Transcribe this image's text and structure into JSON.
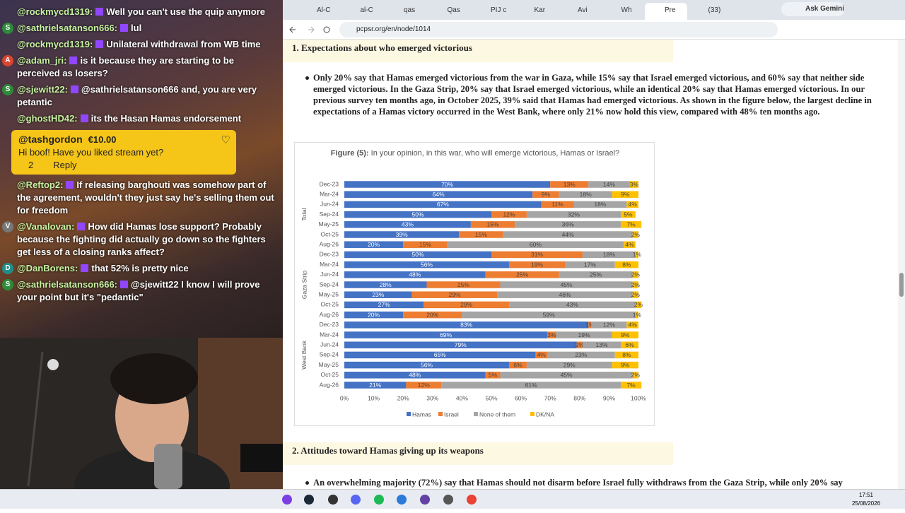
{
  "chat": {
    "messages": [
      {
        "user": "@rockmycd1319:",
        "text": "Well you can't use the quip anymore"
      },
      {
        "avatar": "S",
        "user": "@sathrielsatanson666:",
        "text": "lul"
      },
      {
        "user": "@rockmycd1319:",
        "text": "Unilateral withdrawal from WB time"
      },
      {
        "avatar": "A",
        "user": "@adam_jri:",
        "text": "is it because they are starting to be perceived as losers?"
      },
      {
        "avatar": "S",
        "user": "@sjewitt22:",
        "text": "@sathrielsatanson666 and, you are very petantic"
      },
      {
        "user": "@ghostHD42:",
        "text": "its the Hasan Hamas endorsement"
      }
    ],
    "donation": {
      "user": "@tashgordon",
      "amount": "€10.00",
      "text": "Hi boof! Have you liked stream yet?",
      "likes": "2",
      "reply": "Reply"
    },
    "messages_after": [
      {
        "user": "@Reftop2:",
        "text": "If releasing barghouti was somehow part of the agreement, wouldn't they just say he's selling them out for freedom"
      },
      {
        "avatar": "V",
        "user": "@Vanalovan:",
        "text": "How did Hamas lose support? Probably because the fighting did actually go down so the fighters get less of a closing ranks affect?"
      },
      {
        "avatar": "D",
        "user": "@DanBorens:",
        "text": "that 52% is pretty nice"
      },
      {
        "avatar": "S",
        "user": "@sathrielsatanson666:",
        "text": "@sjewitt22 I know I will prove your point but it's \"pedantic\""
      }
    ]
  },
  "browser": {
    "tabs": [
      "Al-C",
      "al-C",
      "qas",
      "Qas",
      "PIJ c",
      "Kar",
      "Avi",
      "Wh",
      "Pre",
      "(33)"
    ],
    "gemini": "Ask Gemini",
    "url": "pcpsr.org/en/node/1014"
  },
  "article": {
    "heading_1": "1. Expectations about who emerged victorious",
    "bullet_1": "Only 20% say that Hamas emerged victorious from the war in Gaza, while 15% say that Israel emerged victorious, and 60% say that neither side emerged victorious. In the Gaza Strip, 20% say that Israel emerged victorious, while an identical 20% say that Hamas emerged victorious. In our previous survey ten months ago, in October 2025, 39% said that Hamas had emerged victorious. As shown in the figure below, the largest decline in expectations of a Hamas victory occurred in the West Bank, where only 21% now hold this view, compared with 48% ten months ago.",
    "heading_2": "2. Attitudes toward Hamas giving up its weapons",
    "bullet_2": "An overwhelming majority (72%) say that Hamas should not disarm before Israel fully withdraws from the Gaza Strip, while only 20% say"
  },
  "chart_data": {
    "type": "stacked-barh",
    "title": "Figure (5):",
    "subtitle": "In your opinion, in this war, who will emerge victorious, Hamas or Israel?",
    "group_labels": [
      "Total",
      "Gaza Strip",
      "West Bank"
    ],
    "categories": [
      "Dec-23",
      "Mar-24",
      "Jun-24",
      "Sep-24",
      "May-25",
      "Oct-25",
      "Aug-26",
      "Dec-23",
      "Mar-24",
      "Jun-24",
      "Sep-24",
      "May-25",
      "Oct-25",
      "Aug-26",
      "Dec-23",
      "Mar-24",
      "Jun-24",
      "Sep-24",
      "May-25",
      "Oct-25",
      "Aug-26"
    ],
    "series": [
      {
        "name": "Hamas",
        "color": "#4472c4",
        "values": [
          70,
          64,
          67,
          50,
          43,
          39,
          20,
          50,
          56,
          48,
          28,
          23,
          27,
          20,
          83,
          69,
          79,
          65,
          56,
          48,
          21
        ],
        "value_labels": [
          "70%",
          "64%",
          "67%",
          "50%",
          "43%",
          "39%",
          "20%",
          "50%",
          "56%",
          "48%",
          "28%",
          "23%",
          "27%",
          "20%",
          "83%",
          "69%",
          "79%",
          "65%",
          "56%",
          "48%",
          "21%"
        ]
      },
      {
        "name": "Israel",
        "color": "#ed7d31",
        "values": [
          13,
          9,
          11,
          12,
          15,
          15,
          15,
          31,
          19,
          25,
          25,
          29,
          29,
          20,
          1,
          3,
          2,
          4,
          6,
          5,
          12
        ],
        "value_labels": [
          "13%",
          "9%",
          "11%",
          "12%",
          "15%",
          "15%",
          "15%",
          "31%",
          "19%",
          "25%",
          "25%",
          "29%",
          "29%",
          "20%",
          "1%",
          "3%",
          "2%",
          "4%",
          "6%",
          "5%",
          "12%"
        ]
      },
      {
        "name": "None of them",
        "color": "#a5a5a5",
        "values": [
          14,
          18,
          18,
          32,
          36,
          44,
          60,
          18,
          17,
          25,
          45,
          46,
          43,
          59,
          12,
          19,
          13,
          23,
          29,
          45,
          61
        ],
        "value_labels": [
          "14%",
          "18%",
          "18%",
          "32%",
          "36%",
          "44%",
          "60%",
          "18%",
          "17%",
          "25%",
          "45%",
          "46%",
          "43%",
          "59%",
          "12%",
          "19%",
          "13%",
          "23%",
          "29%",
          "45%",
          "61%"
        ]
      },
      {
        "name": "DK/NA",
        "color": "#ffc000",
        "values": [
          3,
          9,
          4,
          5,
          7,
          2,
          4,
          1,
          8,
          2,
          2,
          2,
          2,
          1,
          4,
          9,
          6,
          8,
          9,
          2,
          7
        ],
        "value_labels": [
          "3%",
          "9%",
          "4%",
          "5%",
          "7%",
          "2%",
          "4%",
          "1%",
          "8%",
          "2%",
          "2%",
          "2%",
          "2%",
          "1%",
          "4%",
          "9%",
          "6%",
          "8%",
          "9%",
          "2%",
          "7%"
        ]
      }
    ],
    "xlim": [
      0,
      100
    ],
    "xticks": [
      {
        "value": 0,
        "label": "0%"
      },
      {
        "value": 10,
        "label": "10%"
      },
      {
        "value": 20,
        "label": "20%"
      },
      {
        "value": 30,
        "label": "30%"
      },
      {
        "value": 40,
        "label": "40%"
      },
      {
        "value": 50,
        "label": "50%"
      },
      {
        "value": 60,
        "label": "60%"
      },
      {
        "value": 70,
        "label": "70%"
      },
      {
        "value": 80,
        "label": "80%"
      },
      {
        "value": 90,
        "label": "90%"
      },
      {
        "value": 100,
        "label": "100%"
      }
    ],
    "legend": "bottom"
  },
  "taskbar": {
    "time": "17:51",
    "date": "25/08/2026"
  }
}
